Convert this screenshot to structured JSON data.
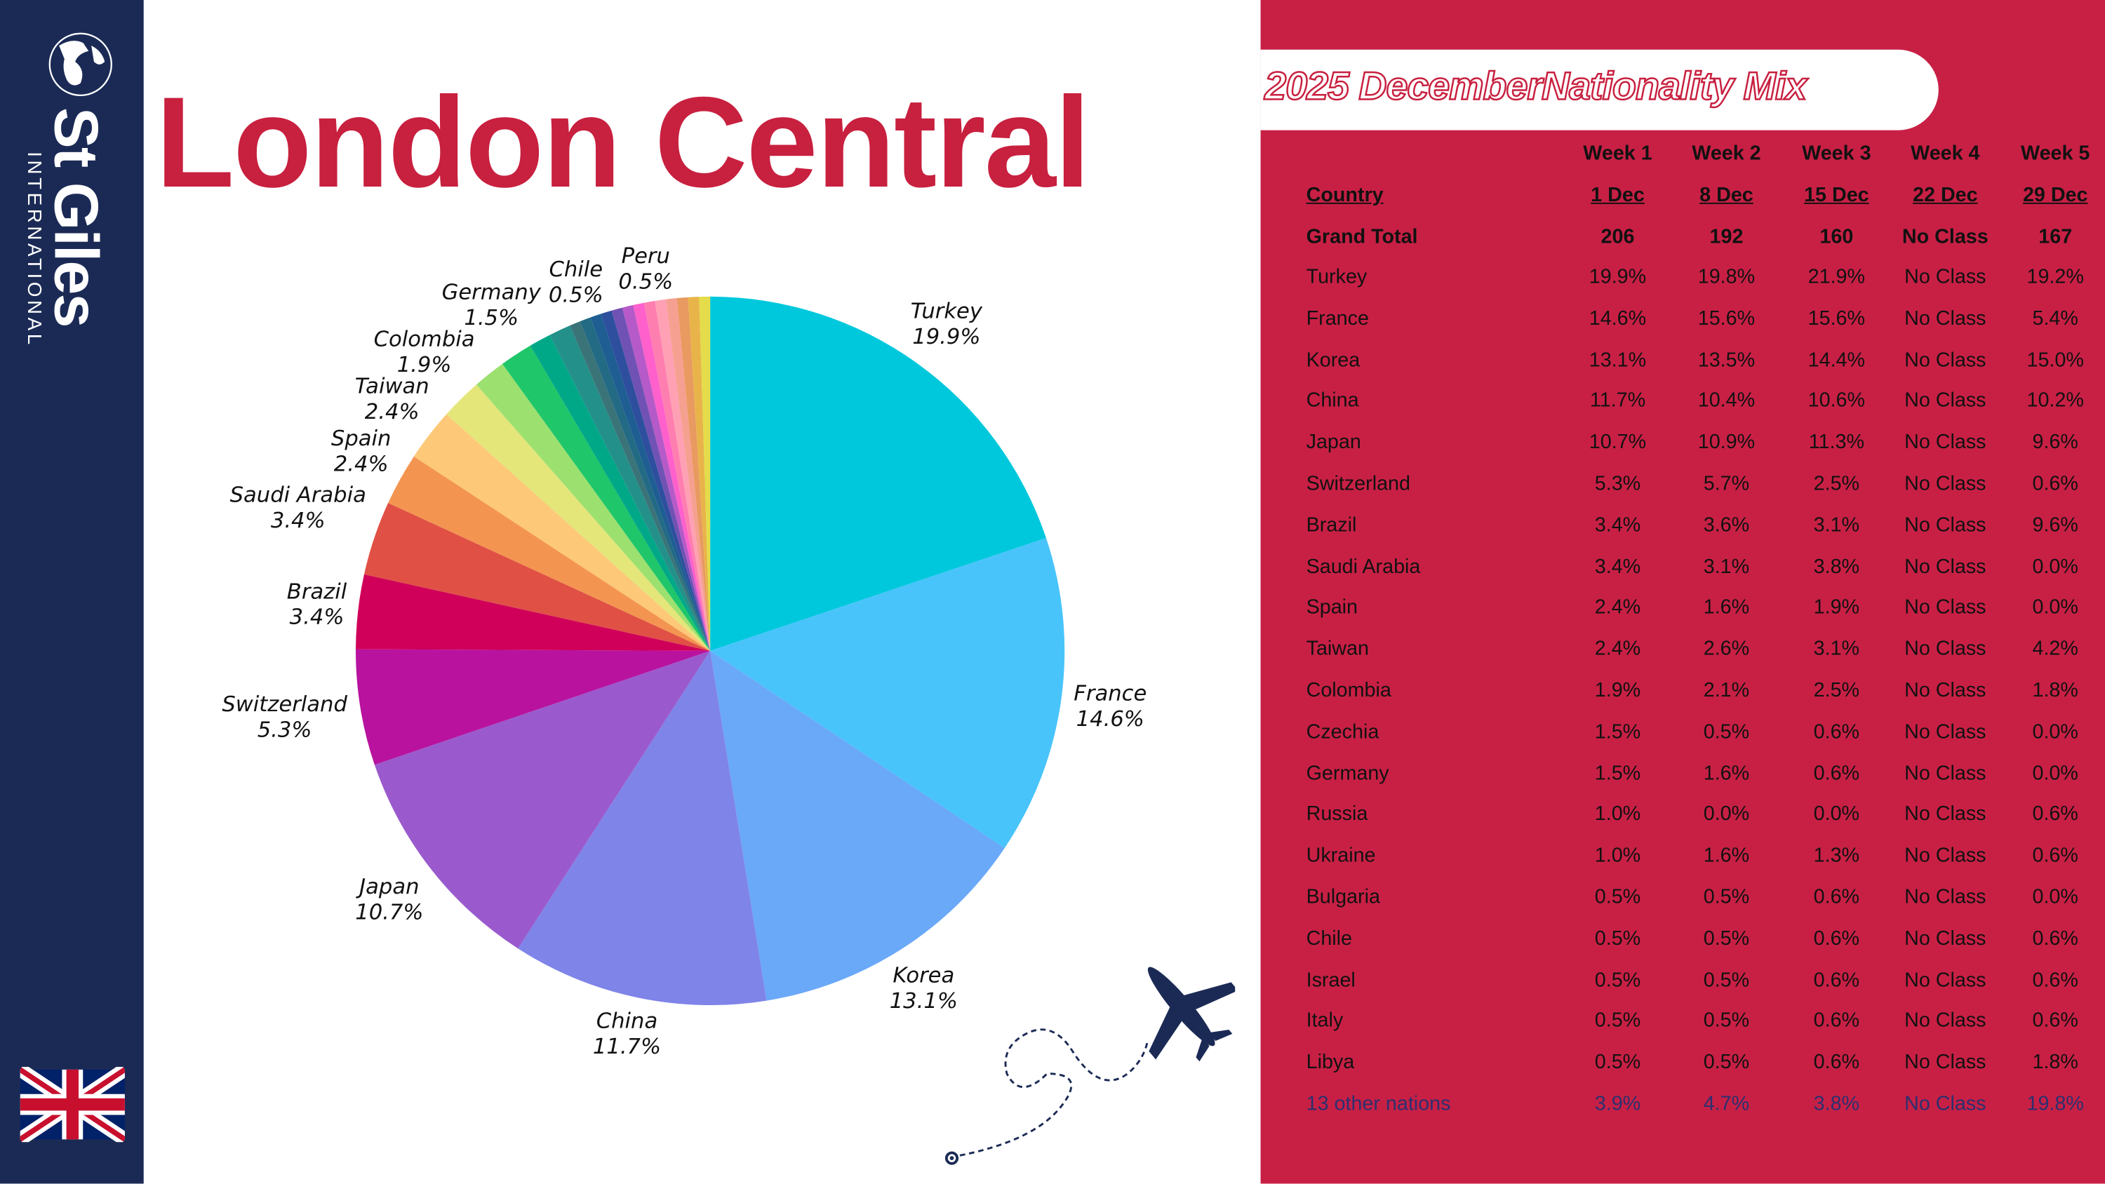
{
  "brand": {
    "name": "St Giles",
    "sub": "INTERNATIONAL",
    "colors": {
      "navy": "#1b2a55",
      "red": "#c82045"
    }
  },
  "title": "London Central",
  "table": {
    "title": "2025 DecemberNationality Mix",
    "weeks": [
      "Week 1",
      "Week 2",
      "Week 3",
      "Week 4",
      "Week 5"
    ],
    "country_header": "Country",
    "dates": [
      "1 Dec",
      "8 Dec",
      "15 Dec",
      "22 Dec",
      "29 Dec"
    ],
    "grand_total": {
      "label": "Grand Total",
      "values": [
        "206",
        "192",
        "160",
        "No Class",
        "167"
      ]
    },
    "rows": [
      {
        "country": "Turkey",
        "values": [
          "19.9%",
          "19.8%",
          "21.9%",
          "No Class",
          "19.2%"
        ]
      },
      {
        "country": "France",
        "values": [
          "14.6%",
          "15.6%",
          "15.6%",
          "No Class",
          "5.4%"
        ]
      },
      {
        "country": "Korea",
        "values": [
          "13.1%",
          "13.5%",
          "14.4%",
          "No Class",
          "15.0%"
        ]
      },
      {
        "country": "China",
        "values": [
          "11.7%",
          "10.4%",
          "10.6%",
          "No Class",
          "10.2%"
        ]
      },
      {
        "country": "Japan",
        "values": [
          "10.7%",
          "10.9%",
          "11.3%",
          "No Class",
          "9.6%"
        ]
      },
      {
        "country": "Switzerland",
        "values": [
          "5.3%",
          "5.7%",
          "2.5%",
          "No Class",
          "0.6%"
        ]
      },
      {
        "country": "Brazil",
        "values": [
          "3.4%",
          "3.6%",
          "3.1%",
          "No Class",
          "9.6%"
        ]
      },
      {
        "country": "Saudi Arabia",
        "values": [
          "3.4%",
          "3.1%",
          "3.8%",
          "No Class",
          "0.0%"
        ]
      },
      {
        "country": "Spain",
        "values": [
          "2.4%",
          "1.6%",
          "1.9%",
          "No Class",
          "0.0%"
        ]
      },
      {
        "country": "Taiwan",
        "values": [
          "2.4%",
          "2.6%",
          "3.1%",
          "No Class",
          "4.2%"
        ]
      },
      {
        "country": "Colombia",
        "values": [
          "1.9%",
          "2.1%",
          "2.5%",
          "No Class",
          "1.8%"
        ]
      },
      {
        "country": "Czechia",
        "values": [
          "1.5%",
          "0.5%",
          "0.6%",
          "No Class",
          "0.0%"
        ]
      },
      {
        "country": "Germany",
        "values": [
          "1.5%",
          "1.6%",
          "0.6%",
          "No Class",
          "0.0%"
        ]
      },
      {
        "country": "Russia",
        "values": [
          "1.0%",
          "0.0%",
          "0.0%",
          "No Class",
          "0.6%"
        ]
      },
      {
        "country": "Ukraine",
        "values": [
          "1.0%",
          "1.6%",
          "1.3%",
          "No Class",
          "0.6%"
        ]
      },
      {
        "country": "Bulgaria",
        "values": [
          "0.5%",
          "0.5%",
          "0.6%",
          "No Class",
          "0.0%"
        ]
      },
      {
        "country": "Chile",
        "values": [
          "0.5%",
          "0.5%",
          "0.6%",
          "No Class",
          "0.6%"
        ]
      },
      {
        "country": "Israel",
        "values": [
          "0.5%",
          "0.5%",
          "0.6%",
          "No Class",
          "0.6%"
        ]
      },
      {
        "country": "Italy",
        "values": [
          "0.5%",
          "0.5%",
          "0.6%",
          "No Class",
          "0.6%"
        ]
      },
      {
        "country": "Libya",
        "values": [
          "0.5%",
          "0.5%",
          "0.6%",
          "No Class",
          "1.8%"
        ]
      }
    ],
    "other": {
      "country": "13 other nations",
      "values": [
        "3.9%",
        "4.7%",
        "3.8%",
        "No Class",
        "19.8%"
      ]
    }
  },
  "chart_data": {
    "type": "pie",
    "start": "top, clockwise",
    "slices": [
      {
        "label": "Turkey",
        "value": 19.9,
        "text": "19.9%",
        "color": "#00c8dc"
      },
      {
        "label": "France",
        "value": 14.6,
        "text": "14.6%",
        "color": "#48c4fb"
      },
      {
        "label": "Korea",
        "value": 13.1,
        "text": "13.1%",
        "color": "#6aa8f8"
      },
      {
        "label": "China",
        "value": 11.7,
        "text": "11.7%",
        "color": "#7f84e8"
      },
      {
        "label": "Japan",
        "value": 10.7,
        "text": "10.7%",
        "color": "#9a5acd"
      },
      {
        "label": "Switzerland",
        "value": 5.3,
        "text": "5.3%",
        "color": "#b8129f"
      },
      {
        "label": "Brazil",
        "value": 3.4,
        "text": "3.4%",
        "color": "#d0005a"
      },
      {
        "label": "Saudi Arabia",
        "value": 3.4,
        "text": "3.4%",
        "color": "#e05045"
      },
      {
        "label": "Spain",
        "value": 2.4,
        "text": "2.4%",
        "color": "#f39550"
      },
      {
        "label": "Taiwan",
        "value": 2.4,
        "text": "2.4%",
        "color": "#fdc878"
      },
      {
        "label": "Colombia",
        "value": 1.9,
        "text": "1.9%",
        "color": "#e4e67a"
      },
      {
        "label": "",
        "value": 1.5,
        "color": "#9ce070"
      },
      {
        "label": "Germany",
        "value": 1.5,
        "text": "1.5%",
        "color": "#1fc66a"
      },
      {
        "label": "",
        "value": 1.0,
        "color": "#00a888"
      },
      {
        "label": "",
        "value": 1.0,
        "color": "#24908a"
      },
      {
        "label": "",
        "value": 0.5,
        "color": "#3a7478"
      },
      {
        "label": "Chile",
        "value": 0.5,
        "text": "0.5%",
        "color": "#236a85"
      },
      {
        "label": "",
        "value": 0.5,
        "color": "#1e5e92"
      },
      {
        "label": "",
        "value": 0.5,
        "color": "#2e4f9e"
      },
      {
        "label": "",
        "value": 0.5,
        "color": "#7052b4"
      },
      {
        "label": "",
        "value": 0.5,
        "color": "#b55ac8"
      },
      {
        "label": "",
        "value": 0.5,
        "color": "#ff60cc"
      },
      {
        "label": "Peru",
        "value": 0.5,
        "text": "0.5%",
        "color": "#ff7eb0"
      },
      {
        "label": "",
        "value": 0.5,
        "color": "#ffa0b4"
      },
      {
        "label": "",
        "value": 0.5,
        "color": "#f5a090"
      },
      {
        "label": "",
        "value": 0.5,
        "color": "#e89a60"
      },
      {
        "label": "",
        "value": 0.5,
        "color": "#e8b44a"
      },
      {
        "label": "",
        "value": 0.5,
        "color": "#e4dc4a"
      }
    ]
  }
}
